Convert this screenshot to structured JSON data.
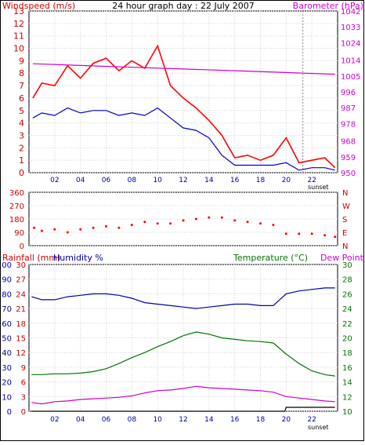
{
  "chart_data": [
    {
      "type": "line",
      "title": "24 hour graph day : 22 July 2007",
      "left_label": "Windspeed (m/s)",
      "right_label": "Barometer (hPa)",
      "x_ticks": [
        "02",
        "04",
        "06",
        "08",
        "10",
        "12",
        "14",
        "16",
        "18",
        "20",
        "22"
      ],
      "xlim": [
        0,
        24
      ],
      "ylim_left": [
        0,
        13
      ],
      "left_ticks": [
        0,
        1,
        2,
        3,
        4,
        5,
        6,
        7,
        8,
        9,
        10,
        11,
        12,
        13
      ],
      "ylim_right": [
        950,
        1042
      ],
      "right_ticks": [
        950,
        959,
        968,
        978,
        987,
        996,
        1005,
        1014,
        1024,
        1033,
        1042
      ],
      "sunset_label": "sunset",
      "sunset_hour": 21.3,
      "grid": true,
      "colors": {
        "gust": "#ff0000",
        "average": "#0000cc",
        "barometer": "#cc00cc"
      },
      "series": [
        {
          "name": "",
          "axis": "left",
          "x": [
            0.3,
            1,
            2,
            3,
            4,
            5,
            6,
            7,
            8,
            9,
            10,
            11,
            12,
            13,
            14,
            15,
            16,
            17,
            18,
            19,
            20,
            21,
            22,
            23,
            23.8
          ],
          "values": [
            6.0,
            7.2,
            7.0,
            8.6,
            7.6,
            8.8,
            9.2,
            8.2,
            9.0,
            8.4,
            10.2,
            7.0,
            6.0,
            5.2,
            4.2,
            3.0,
            1.2,
            1.4,
            1.0,
            1.4,
            2.8,
            0.8,
            1.0,
            1.2,
            0.4
          ]
        },
        {
          "name": "",
          "axis": "left",
          "x": [
            0.3,
            1,
            2,
            3,
            4,
            5,
            6,
            7,
            8,
            9,
            10,
            11,
            12,
            13,
            14,
            15,
            16,
            17,
            18,
            19,
            20,
            21,
            22,
            23,
            23.8
          ],
          "values": [
            4.4,
            4.8,
            4.6,
            5.2,
            4.8,
            5.0,
            5.0,
            4.6,
            4.8,
            4.6,
            5.2,
            4.4,
            3.6,
            3.4,
            2.8,
            1.4,
            0.6,
            0.6,
            0.6,
            0.6,
            0.8,
            0.2,
            0.4,
            0.4,
            0.2
          ]
        },
        {
          "name": "",
          "axis": "right",
          "x": [
            0.3,
            4,
            8,
            12,
            16,
            20,
            23.8
          ],
          "values": [
            1012,
            1011,
            1010,
            1009,
            1008,
            1007,
            1006
          ]
        }
      ]
    },
    {
      "type": "scatter",
      "title": "",
      "left_ticks": [
        0,
        90,
        180,
        270,
        360
      ],
      "ylim": [
        0,
        360
      ],
      "right_ticks": [
        "N",
        "W",
        "S",
        "E",
        "N"
      ],
      "color": "#ff0000",
      "series": [
        {
          "name": "",
          "x": [
            0.4,
            1,
            2,
            3,
            4,
            5,
            6,
            7,
            8,
            9,
            10,
            11,
            12,
            13,
            14,
            15,
            16,
            17,
            18,
            19,
            20,
            21,
            22,
            23,
            23.8
          ],
          "values": [
            120,
            100,
            110,
            90,
            110,
            120,
            130,
            120,
            140,
            160,
            150,
            150,
            170,
            180,
            190,
            190,
            170,
            160,
            150,
            140,
            80,
            80,
            80,
            70,
            60
          ]
        }
      ]
    },
    {
      "type": "line",
      "title": "",
      "left_label_1": "Rainfall (mm)",
      "left_label_2": "Humidity %",
      "right_label_1": "Temperature (°C)",
      "right_label_2": "Dew Point",
      "x_ticks": [
        "02",
        "04",
        "06",
        "08",
        "10",
        "12",
        "14",
        "16",
        "18",
        "20",
        "22"
      ],
      "xlim": [
        0,
        24
      ],
      "humidity_ticks": [
        0,
        10,
        20,
        30,
        40,
        50,
        60,
        70,
        80,
        90,
        100
      ],
      "rain_ticks": [
        0,
        3,
        6,
        9,
        12,
        15,
        18,
        21,
        24,
        27,
        30
      ],
      "temp_ticks": [
        10,
        12,
        14,
        16,
        18,
        20,
        22,
        24,
        26,
        28,
        30
      ],
      "ylim_humidity": [
        0,
        100
      ],
      "ylim_temp": [
        10,
        30
      ],
      "sunset_label": "sunset",
      "grid": true,
      "colors": {
        "humidity": "#0000aa",
        "temperature": "#007700",
        "dewpoint": "#cc00cc",
        "rainfall": "#000000"
      },
      "series": [
        {
          "name": "",
          "axis": "humidity",
          "x": [
            0.2,
            1,
            2,
            3,
            4,
            5,
            6,
            7,
            8,
            9,
            10,
            11,
            12,
            13,
            14,
            15,
            16,
            17,
            18,
            19,
            20,
            21,
            22,
            23,
            23.8
          ],
          "values": [
            78,
            76,
            76,
            78,
            79,
            80,
            80,
            79,
            77,
            74,
            73,
            72,
            71,
            70,
            71,
            72,
            73,
            73,
            72,
            72,
            80,
            82,
            83,
            84,
            84
          ]
        },
        {
          "name": "",
          "axis": "temp",
          "x": [
            0.2,
            1,
            2,
            3,
            4,
            5,
            6,
            7,
            8,
            9,
            10,
            11,
            12,
            13,
            14,
            15,
            16,
            17,
            18,
            19,
            20,
            21,
            22,
            23,
            23.8
          ],
          "values": [
            15.0,
            15.0,
            15.1,
            15.1,
            15.2,
            15.4,
            15.8,
            16.5,
            17.3,
            18.0,
            18.8,
            19.5,
            20.3,
            20.8,
            20.5,
            20.0,
            19.8,
            19.6,
            19.5,
            19.3,
            17.8,
            16.5,
            15.5,
            15.0,
            14.8
          ]
        },
        {
          "name": "",
          "axis": "temp",
          "x": [
            0.2,
            1,
            2,
            3,
            4,
            5,
            6,
            7,
            8,
            9,
            10,
            11,
            12,
            13,
            14,
            15,
            16,
            17,
            18,
            19,
            20,
            21,
            22,
            23,
            23.8
          ],
          "values": [
            11.2,
            11.0,
            11.3,
            11.4,
            11.6,
            11.7,
            11.8,
            11.9,
            12.1,
            12.5,
            12.8,
            12.9,
            13.1,
            13.4,
            13.2,
            13.1,
            13.0,
            12.9,
            12.8,
            12.6,
            12.0,
            11.8,
            11.6,
            11.4,
            11.3
          ]
        },
        {
          "name": "",
          "axis": "rain",
          "x": [
            0.2,
            19.9,
            20.0,
            23.8
          ],
          "values": [
            0,
            0,
            0.8,
            0.8
          ]
        }
      ]
    }
  ]
}
